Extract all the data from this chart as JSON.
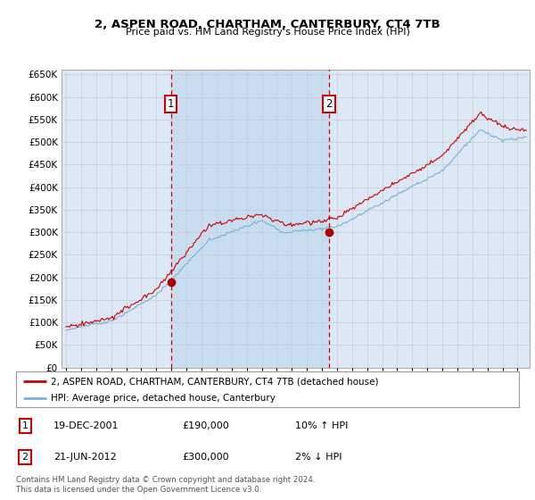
{
  "title": "2, ASPEN ROAD, CHARTHAM, CANTERBURY, CT4 7TB",
  "subtitle": "Price paid vs. HM Land Registry's House Price Index (HPI)",
  "background_color": "#dce8f5",
  "highlight_color": "#c8ddf0",
  "legend_line1": "2, ASPEN ROAD, CHARTHAM, CANTERBURY, CT4 7TB (detached house)",
  "legend_line2": "HPI: Average price, detached house, Canterbury",
  "annotation1_date": "19-DEC-2001",
  "annotation1_price": "£190,000",
  "annotation1_hpi": "10% ↑ HPI",
  "annotation2_date": "21-JUN-2012",
  "annotation2_price": "£300,000",
  "annotation2_hpi": "2% ↓ HPI",
  "footer": "Contains HM Land Registry data © Crown copyright and database right 2024.\nThis data is licensed under the Open Government Licence v3.0.",
  "ylim": [
    0,
    660000
  ],
  "yticks": [
    0,
    50000,
    100000,
    150000,
    200000,
    250000,
    300000,
    350000,
    400000,
    450000,
    500000,
    550000,
    600000,
    650000
  ],
  "sale1_x": 2001.97,
  "sale1_y": 190000,
  "sale2_x": 2012.47,
  "sale2_y": 300000,
  "line_color_red": "#cc0000",
  "line_color_blue": "#7ab0d4",
  "marker_color": "#aa0000",
  "vline_color": "#cc0000",
  "grid_color": "#cccccc",
  "box_color": "#cc0000",
  "xmin": 1994.7,
  "xmax": 2025.8
}
